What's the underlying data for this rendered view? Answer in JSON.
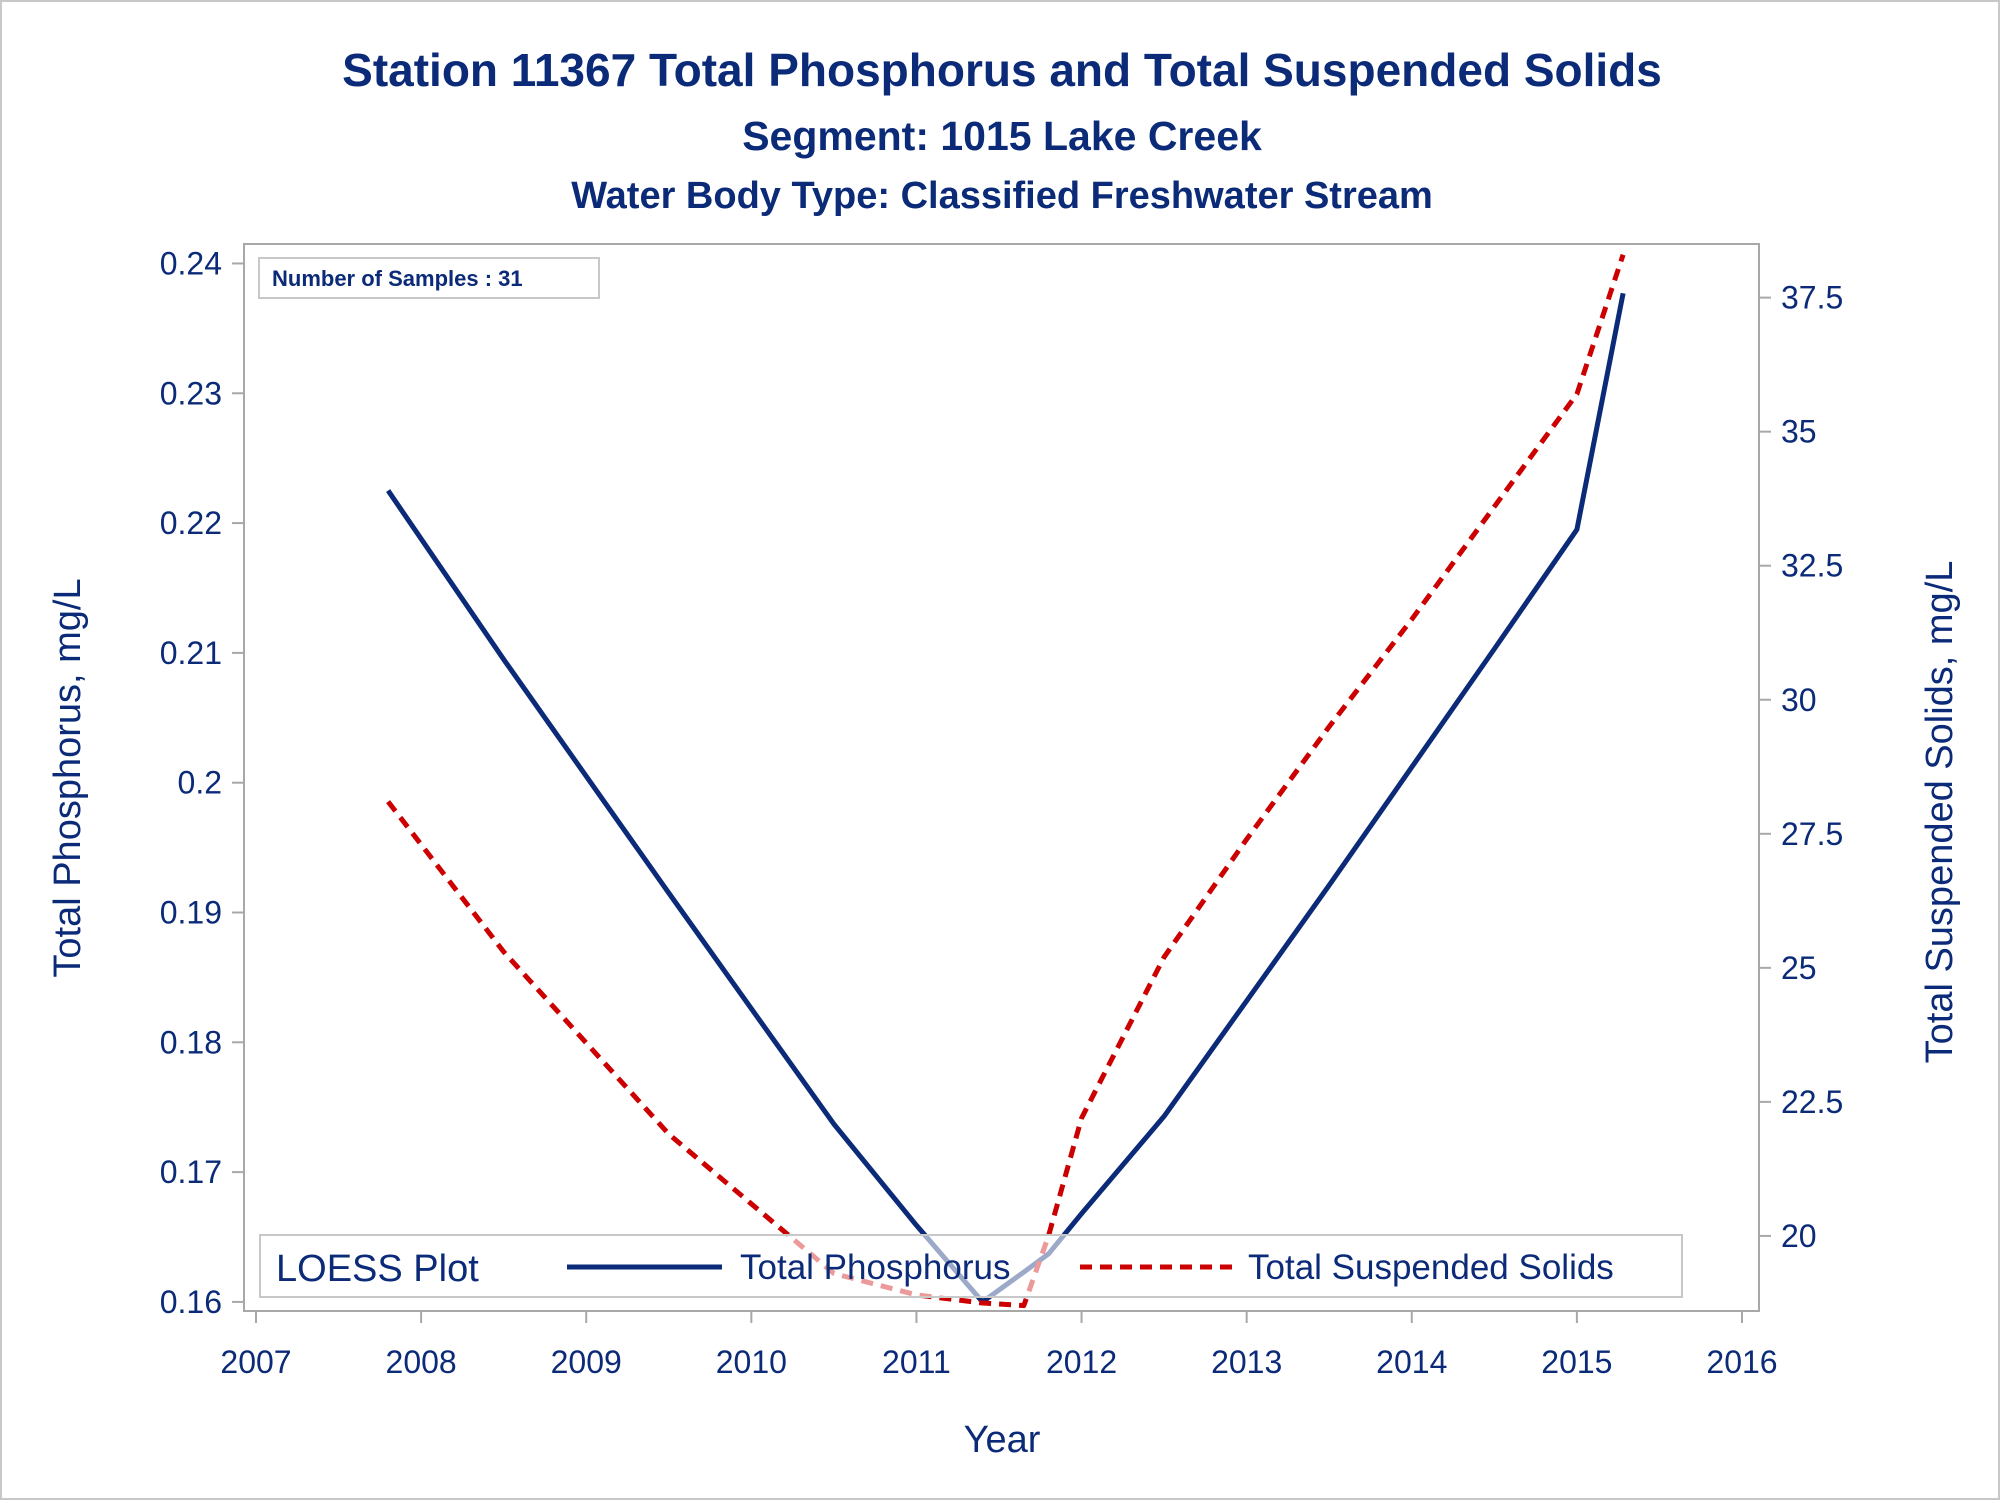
{
  "colors": {
    "text": "#0b2a78",
    "series_tp": "#0b2a78",
    "series_tss": "#cc0000",
    "frame": "#a8a8a8",
    "legend_border": "#c8c8c8"
  },
  "chart_data": {
    "type": "line",
    "title": "Station 11367  Total Phosphorus and Total Suspended Solids",
    "subtitle": "Segment: 1015  Lake Creek",
    "subtitle2": "Water Body Type: Classified Freshwater Stream",
    "xlabel": "Year",
    "ylabel_left": "Total Phosphorus, mg/L",
    "ylabel_right": "Total Suspended Solids, mg/L",
    "xlim": [
      2007,
      2016
    ],
    "ylim_left": [
      0.1593,
      0.2415
    ],
    "ylim_right": [
      18.6,
      38.5
    ],
    "x_ticks": [
      "2007",
      "2008",
      "2009",
      "2010",
      "2011",
      "2012",
      "2013",
      "2014",
      "2015",
      "2016"
    ],
    "y_left_ticks": [
      "0.16",
      "0.17",
      "0.18",
      "0.19",
      "0.2",
      "0.21",
      "0.22",
      "0.23",
      "0.24"
    ],
    "y_right_ticks": [
      "20",
      "22.5",
      "25",
      "27.5",
      "30",
      "32.5",
      "35",
      "37.5"
    ],
    "grid": false,
    "inset_label": "Number of Samples : 31",
    "legend": {
      "title": "LOESS Plot",
      "placement": "bottom-inside",
      "entries": [
        "Total Phosphorus",
        "Total Suspended Solids"
      ]
    },
    "series": [
      {
        "name": "Total Phosphorus",
        "axis": "left",
        "style": "solid",
        "x": [
          2007.8,
          2008.5,
          2009.0,
          2009.5,
          2010.0,
          2010.5,
          2011.0,
          2011.4,
          2011.65,
          2011.8,
          2012.0,
          2012.5,
          2013.0,
          2013.5,
          2014.0,
          2014.5,
          2015.0,
          2015.28
        ],
        "y": [
          0.2225,
          0.2095,
          0.2005,
          0.1915,
          0.1826,
          0.1737,
          0.1659,
          0.16,
          0.1623,
          0.1637,
          0.1668,
          0.1743,
          0.1832,
          0.1921,
          0.2012,
          0.2103,
          0.2195,
          0.2377
        ]
      },
      {
        "name": "Total Suspended Solids",
        "axis": "right",
        "style": "dashed",
        "x": [
          2007.8,
          2008.5,
          2009.0,
          2009.5,
          2010.0,
          2010.5,
          2011.0,
          2011.4,
          2011.65,
          2011.8,
          2012.0,
          2012.5,
          2013.0,
          2013.5,
          2014.0,
          2014.5,
          2015.0,
          2015.28
        ],
        "y": [
          28.1,
          25.3,
          23.6,
          21.9,
          20.6,
          19.3,
          18.9,
          18.75,
          18.7,
          20.0,
          22.2,
          25.2,
          27.4,
          29.5,
          31.5,
          33.6,
          35.7,
          38.3
        ]
      }
    ]
  }
}
